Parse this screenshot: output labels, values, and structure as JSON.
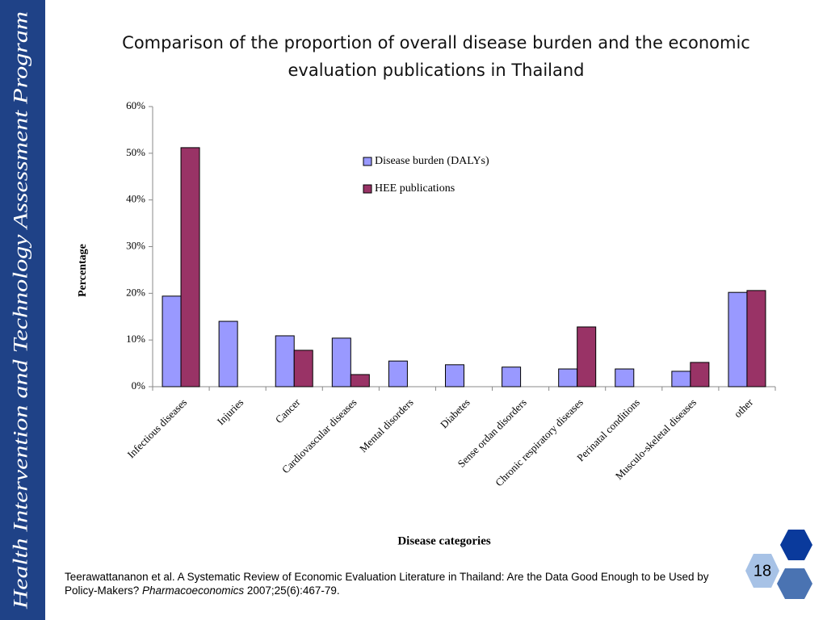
{
  "sidebar": {
    "text": "Health Intervention and Technology Assessment Program"
  },
  "chart_data": {
    "type": "bar",
    "title": "Comparison of the proportion of overall disease burden and the economic evaluation publications in Thailand",
    "x_label": "Disease categories",
    "y_label": "Percentage",
    "categories": [
      "Infectious diseases",
      "Injuries",
      "Cancer",
      "Cardiovascular diseases",
      "Mental disorders",
      "Diabetes",
      "Sense ordan disorders",
      "Chronic respiratory diseases",
      "Perinatal conditions",
      "Musculo-skeletal diseases",
      "other"
    ],
    "series": [
      {
        "name": "Disease burden (DALYs)",
        "color": "#9999ff",
        "values": [
          19.4,
          14.0,
          10.9,
          10.4,
          5.5,
          4.7,
          4.2,
          3.8,
          3.8,
          3.3,
          20.2
        ]
      },
      {
        "name": "HEE publications",
        "color": "#993366",
        "values": [
          51.2,
          0,
          7.8,
          2.6,
          0,
          0,
          0,
          12.8,
          0,
          5.2,
          20.6
        ]
      }
    ],
    "ylim": [
      0,
      60
    ],
    "yticks": [
      {
        "value": 0,
        "label": "0%"
      },
      {
        "value": 10,
        "label": "10%"
      },
      {
        "value": 20,
        "label": "20%"
      },
      {
        "value": 30,
        "label": "30%"
      },
      {
        "value": 40,
        "label": "40%"
      },
      {
        "value": 50,
        "label": "50%"
      },
      {
        "value": 60,
        "label": "60%"
      }
    ],
    "grid": false,
    "legend": "upper center"
  },
  "footer": {
    "citation": [
      "Teerawattananon et al. A Systematic Review of Economic Evaluation Literature in Thailand: Are the Data Good Enough to be Used by Policy-Makers? ",
      "Pharmacoeconomics",
      " 2007;25(6):467-79."
    ],
    "page_number": "18"
  }
}
